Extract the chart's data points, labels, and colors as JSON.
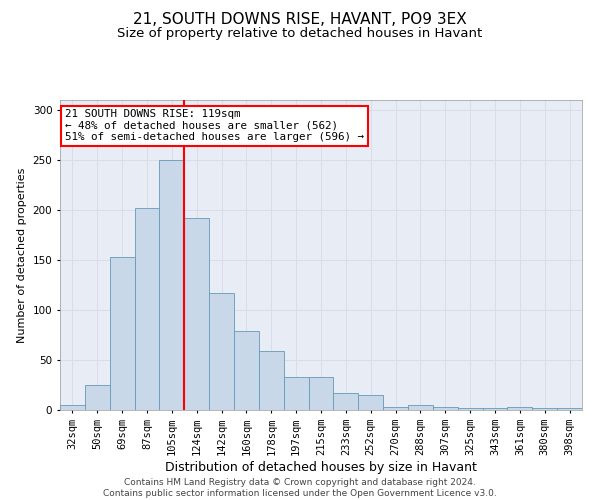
{
  "title": "21, SOUTH DOWNS RISE, HAVANT, PO9 3EX",
  "subtitle": "Size of property relative to detached houses in Havant",
  "xlabel": "Distribution of detached houses by size in Havant",
  "ylabel": "Number of detached properties",
  "categories": [
    "32sqm",
    "50sqm",
    "69sqm",
    "87sqm",
    "105sqm",
    "124sqm",
    "142sqm",
    "160sqm",
    "178sqm",
    "197sqm",
    "215sqm",
    "233sqm",
    "252sqm",
    "270sqm",
    "288sqm",
    "307sqm",
    "325sqm",
    "343sqm",
    "361sqm",
    "380sqm",
    "398sqm"
  ],
  "values": [
    5,
    25,
    153,
    202,
    250,
    192,
    117,
    79,
    59,
    33,
    33,
    17,
    15,
    3,
    5,
    3,
    2,
    2,
    3,
    2,
    2
  ],
  "bar_color": "#c8d8e8",
  "bar_edge_color": "#6699bb",
  "vline_x_index": 4,
  "vline_color": "red",
  "annotation_text": "21 SOUTH DOWNS RISE: 119sqm\n← 48% of detached houses are smaller (562)\n51% of semi-detached houses are larger (596) →",
  "annotation_box_color": "white",
  "annotation_box_edge_color": "red",
  "ylim": [
    0,
    310
  ],
  "yticks": [
    0,
    50,
    100,
    150,
    200,
    250,
    300
  ],
  "grid_color": "#d8dde8",
  "background_color": "#e8edf5",
  "footer_text": "Contains HM Land Registry data © Crown copyright and database right 2024.\nContains public sector information licensed under the Open Government Licence v3.0.",
  "title_fontsize": 11,
  "subtitle_fontsize": 9.5,
  "xlabel_fontsize": 9,
  "ylabel_fontsize": 8,
  "tick_fontsize": 7.5,
  "annotation_fontsize": 7.8,
  "footer_fontsize": 6.5
}
